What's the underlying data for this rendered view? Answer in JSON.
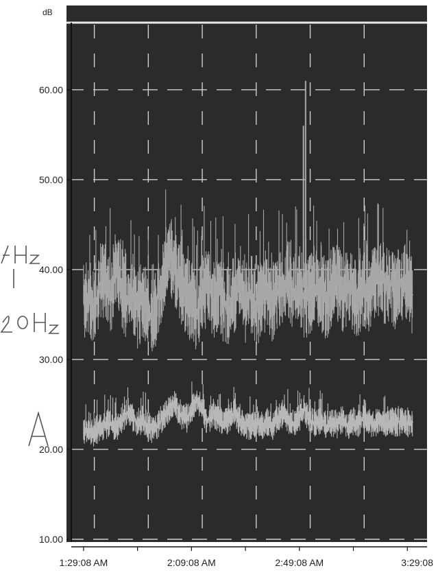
{
  "chart_data": {
    "type": "line",
    "title": "",
    "unit_label": "dB",
    "xlabel": "",
    "ylabel": "",
    "ylim": [
      10,
      68
    ],
    "y_ticks": [
      10,
      20,
      30,
      40,
      50,
      60
    ],
    "y_tick_labels": [
      "10.00",
      "20.00",
      "30.00",
      "40.00",
      "50.00",
      "60.00"
    ],
    "x_ticks": [
      0,
      40,
      80,
      120
    ],
    "x_tick_labels": [
      "1:29:08 AM",
      "2:09:08 AM",
      "2:49:08 AM",
      "3:29:08"
    ],
    "xlim": [
      -2,
      124
    ],
    "x_unit": "minutes after 1:29:08 AM",
    "grid": true,
    "grid_style": "dashed",
    "plot_background": "#2b2b2b",
    "series": [
      {
        "color": "#a8a8a8",
        "values": [
          [
            0,
            36.5
          ],
          [
            2,
            37.2
          ],
          [
            4,
            35.8
          ],
          [
            6,
            38.4
          ],
          [
            8,
            39.1
          ],
          [
            10,
            37.0
          ],
          [
            12,
            40.5
          ],
          [
            14,
            38.2
          ],
          [
            16,
            36.1
          ],
          [
            18,
            37.8
          ],
          [
            20,
            35.5
          ],
          [
            22,
            36.8
          ],
          [
            24,
            35.2
          ],
          [
            26,
            34.6
          ],
          [
            28,
            37.5
          ],
          [
            30,
            39.8
          ],
          [
            32,
            41.6
          ],
          [
            34,
            40.2
          ],
          [
            36,
            38.5
          ],
          [
            38,
            37.1
          ],
          [
            40,
            36.4
          ],
          [
            42,
            35.2
          ],
          [
            44,
            37.3
          ],
          [
            46,
            38.1
          ],
          [
            48,
            36.5
          ],
          [
            50,
            37.9
          ],
          [
            52,
            36.2
          ],
          [
            54,
            35.8
          ],
          [
            56,
            37.5
          ],
          [
            58,
            38.6
          ],
          [
            60,
            36.1
          ],
          [
            62,
            37.4
          ],
          [
            64,
            35.9
          ],
          [
            66,
            36.8
          ],
          [
            68,
            38.0
          ],
          [
            70,
            36.3
          ],
          [
            72,
            37.6
          ],
          [
            74,
            38.5
          ],
          [
            76,
            39.2
          ],
          [
            78,
            37.1
          ],
          [
            80,
            38.3
          ],
          [
            82,
            36.7
          ],
          [
            84,
            37.2
          ],
          [
            86,
            38.0
          ],
          [
            88,
            37.5
          ],
          [
            90,
            36.6
          ],
          [
            92,
            37.9
          ],
          [
            94,
            38.7
          ],
          [
            96,
            37.4
          ],
          [
            98,
            38.5
          ],
          [
            100,
            37.2
          ],
          [
            102,
            36.8
          ],
          [
            104,
            38.1
          ],
          [
            106,
            37.0
          ],
          [
            108,
            38.4
          ],
          [
            110,
            39.3
          ],
          [
            112,
            38.0
          ],
          [
            114,
            38.6
          ],
          [
            116,
            37.3
          ],
          [
            118,
            38.9
          ],
          [
            120,
            38.0
          ],
          [
            122,
            37.2
          ]
        ],
        "peaks": [
          [
            81.5,
            56.0
          ],
          [
            82.3,
            61.0
          ]
        ]
      },
      {
        "color": "#b8b8b8",
        "values": [
          [
            0,
            21.8
          ],
          [
            2,
            22.0
          ],
          [
            4,
            21.9
          ],
          [
            6,
            22.3
          ],
          [
            8,
            22.6
          ],
          [
            10,
            23.0
          ],
          [
            12,
            22.4
          ],
          [
            14,
            23.2
          ],
          [
            16,
            24.1
          ],
          [
            18,
            23.5
          ],
          [
            20,
            22.8
          ],
          [
            22,
            23.4
          ],
          [
            24,
            22.6
          ],
          [
            26,
            22.1
          ],
          [
            28,
            23.0
          ],
          [
            30,
            23.8
          ],
          [
            32,
            24.6
          ],
          [
            34,
            25.1
          ],
          [
            36,
            23.9
          ],
          [
            38,
            23.2
          ],
          [
            40,
            24.5
          ],
          [
            42,
            25.6
          ],
          [
            44,
            24.3
          ],
          [
            46,
            23.1
          ],
          [
            48,
            24.0
          ],
          [
            50,
            23.4
          ],
          [
            52,
            22.8
          ],
          [
            54,
            23.5
          ],
          [
            56,
            24.2
          ],
          [
            58,
            23.1
          ],
          [
            60,
            22.7
          ],
          [
            62,
            22.5
          ],
          [
            64,
            23.0
          ],
          [
            66,
            22.6
          ],
          [
            68,
            23.1
          ],
          [
            70,
            22.4
          ],
          [
            72,
            23.5
          ],
          [
            74,
            24.0
          ],
          [
            76,
            23.2
          ],
          [
            78,
            22.8
          ],
          [
            80,
            23.6
          ],
          [
            82,
            24.4
          ],
          [
            84,
            23.1
          ],
          [
            86,
            22.9
          ],
          [
            88,
            23.3
          ],
          [
            90,
            22.7
          ],
          [
            92,
            23.0
          ],
          [
            94,
            22.8
          ],
          [
            96,
            23.4
          ],
          [
            98,
            22.6
          ],
          [
            100,
            23.1
          ],
          [
            102,
            22.9
          ],
          [
            104,
            23.5
          ],
          [
            106,
            23.0
          ],
          [
            108,
            22.8
          ],
          [
            110,
            23.3
          ],
          [
            112,
            22.7
          ],
          [
            114,
            23.1
          ],
          [
            116,
            22.9
          ],
          [
            118,
            23.2
          ],
          [
            120,
            22.8
          ],
          [
            122,
            23.0
          ]
        ]
      }
    ],
    "annotations": []
  }
}
